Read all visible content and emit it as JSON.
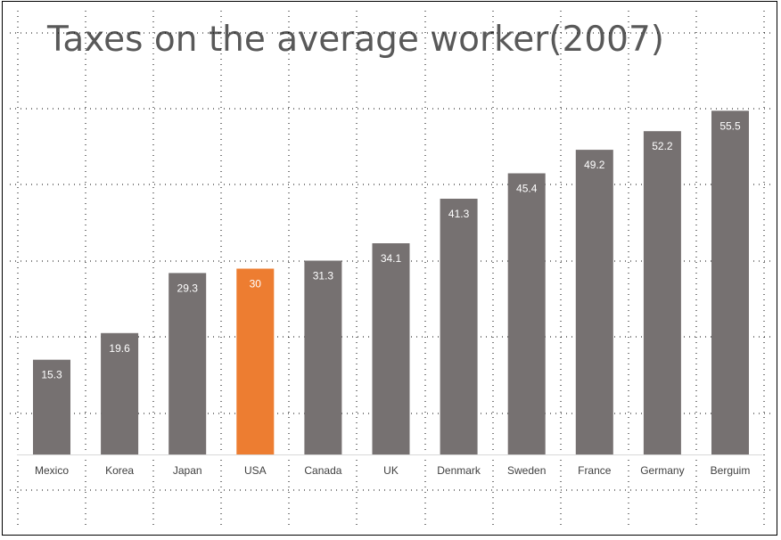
{
  "chart_data": {
    "type": "bar",
    "title": "Taxes on the average worker(2007)",
    "xlabel": "",
    "ylabel": "",
    "categories": [
      "Mexico",
      "Korea",
      "Japan",
      "USA",
      "Canada",
      "UK",
      "Denmark",
      "Sweden",
      "France",
      "Germany",
      "Berguim"
    ],
    "values": [
      15.3,
      19.6,
      29.3,
      30,
      31.3,
      34.1,
      41.3,
      45.4,
      49.2,
      52.2,
      55.5
    ],
    "data_labels": [
      "15.3",
      "19.6",
      "29.3",
      "30",
      "31.3",
      "34.1",
      "41.3",
      "45.4",
      "49.2",
      "52.2",
      "55.5"
    ],
    "ylim": [
      0,
      60
    ],
    "grid": "dotted",
    "legend": "none",
    "highlight_category": "USA"
  },
  "colors": {
    "bar": "#767171",
    "highlight": "#ed7d31",
    "grid": "#000000",
    "axis": "#d9d9d9",
    "title": "#595959",
    "category_text": "#404040",
    "data_label_text": "#ffffff"
  }
}
